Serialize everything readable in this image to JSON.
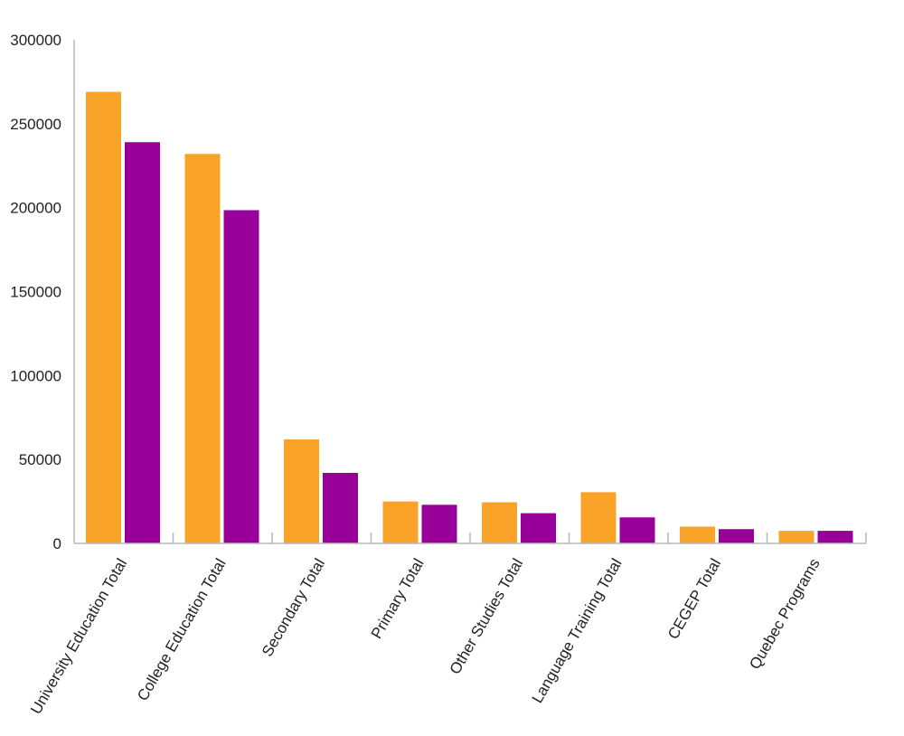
{
  "chart_data": {
    "type": "bar",
    "title": "",
    "xlabel": "",
    "ylabel": "",
    "ylim": [
      0,
      300000
    ],
    "yticks": [
      "0",
      "50000",
      "100000",
      "150000",
      "200000",
      "250000",
      "300000"
    ],
    "categories": [
      "University Education Total",
      "College Education Total",
      "Secondary Total",
      "Primary Total",
      "Other Studies Total",
      "Language Training Total",
      "CEGEP Total",
      "Quebec Programs"
    ],
    "series": [
      {
        "color": "#F9A429",
        "values": [
          269000,
          232000,
          62000,
          25000,
          24500,
          30500,
          10000,
          7500
        ]
      },
      {
        "color": "#990099",
        "values": [
          239000,
          198500,
          42000,
          23000,
          18000,
          15500,
          8500,
          7500
        ]
      }
    ],
    "grid": false,
    "legend": "none"
  }
}
